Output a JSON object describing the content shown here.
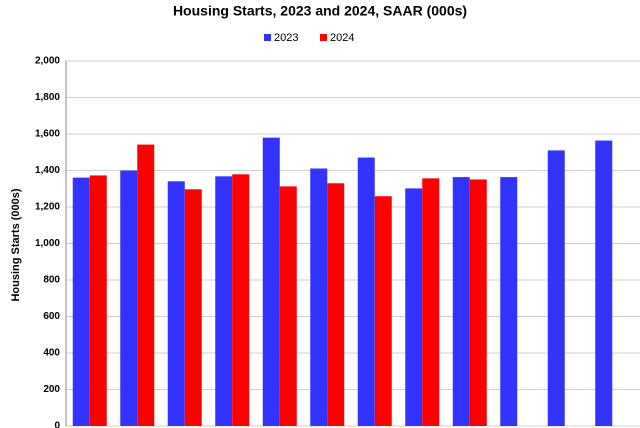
{
  "chart_data": {
    "type": "bar",
    "title": "Housing Starts,  2023 and 2024, SAAR (000s)",
    "y_label": "Housing Starts (000s)",
    "categories": [
      null,
      null,
      null,
      null,
      null,
      null,
      null,
      null,
      null,
      null,
      null,
      null
    ],
    "series": [
      {
        "name": "2023",
        "color": "#3333ff",
        "values": [
          1361,
          1400,
          1341,
          1368,
          1580,
          1411,
          1471,
          1302,
          1364,
          1364,
          1510,
          1564
        ]
      },
      {
        "name": "2024",
        "color": "#ff0000",
        "values": [
          1373,
          1542,
          1297,
          1379,
          1313,
          1330,
          1259,
          1357,
          1351,
          null,
          null,
          null
        ]
      }
    ],
    "ylim": [
      0,
      2000
    ],
    "yticks": [
      0,
      200,
      400,
      600,
      800,
      {
        "value": 1000,
        "label": "1,000"
      },
      {
        "value": 1200,
        "label": "1,200"
      },
      {
        "value": 1400,
        "label": "1,400"
      },
      {
        "value": 1600,
        "label": "1,600"
      },
      {
        "value": 1800,
        "label": "1,800"
      },
      {
        "value": 2000,
        "label": "2,000"
      }
    ],
    "grid": true,
    "legend": "top"
  }
}
